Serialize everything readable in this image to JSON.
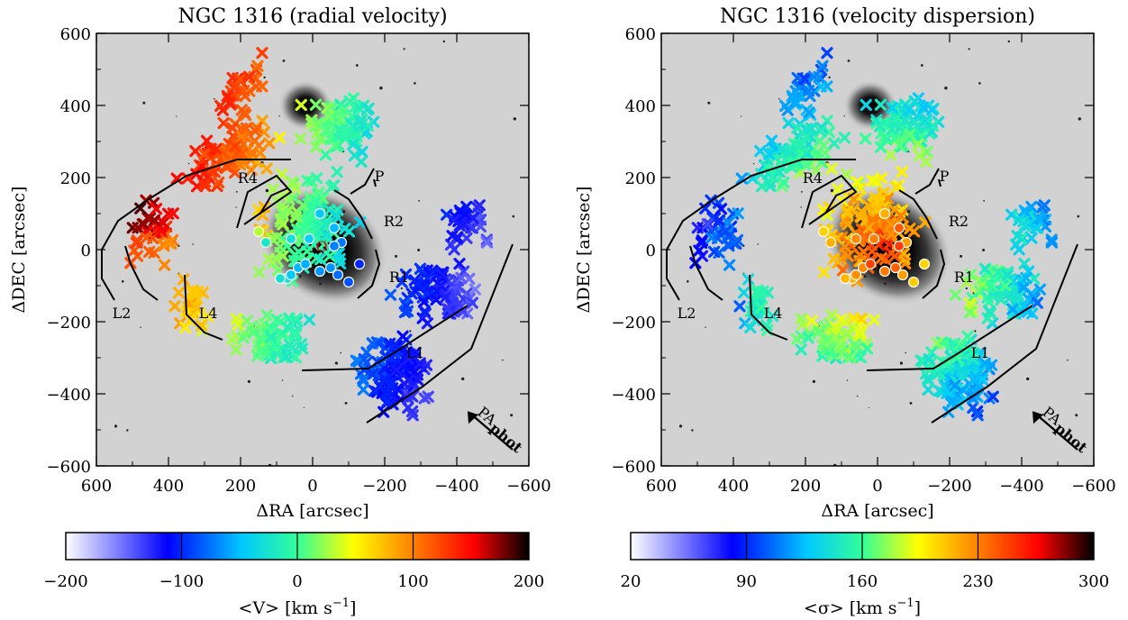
{
  "panels": [
    {
      "title": "NGC 1316 (radial velocity)",
      "xlabel": "ΔRA [arcsec]",
      "ylabel": "ΔDEC [arcsec]",
      "xlim": [
        600,
        -600
      ],
      "ylim": [
        -600,
        600
      ],
      "xticks": [
        "600",
        "400",
        "200",
        "0",
        "−200",
        "−400",
        "−600"
      ],
      "yticks": [
        "600",
        "400",
        "200",
        "0",
        "−200",
        "−400",
        "−600"
      ],
      "labels": [
        "R4",
        "P",
        "R2",
        "R1",
        "L2",
        "L4",
        "L1"
      ],
      "center_label": "O",
      "pa_label": "PA",
      "pa_sub": "phot",
      "colorbar": {
        "min": -200,
        "max": 200,
        "ticks": [
          "−200",
          "−100",
          "0",
          "100",
          "200"
        ],
        "label_main": "<V> [km s",
        "label_sup": "−1",
        "label_close": "]",
        "scale": "white-blue-cyan-green-yellow-orange-red-black"
      }
    },
    {
      "title": "NGC 1316 (velocity dispersion)",
      "xlabel": "ΔRA [arcsec]",
      "ylabel": "ΔDEC [arcsec]",
      "xlim": [
        600,
        -600
      ],
      "ylim": [
        -600,
        600
      ],
      "xticks": [
        "600",
        "400",
        "200",
        "0",
        "−200",
        "−400",
        "−600"
      ],
      "yticks": [
        "600",
        "400",
        "200",
        "0",
        "−200",
        "−400",
        "−600"
      ],
      "labels": [
        "R4",
        "P",
        "R2",
        "R1",
        "L2",
        "L4",
        "L1"
      ],
      "center_label": "O",
      "pa_label": "PA",
      "pa_sub": "phot",
      "colorbar": {
        "min": 20,
        "max": 300,
        "ticks": [
          "20",
          "90",
          "160",
          "230",
          "300"
        ],
        "label_main": "<σ> [km s",
        "label_sup": "−1",
        "label_close": "]",
        "scale": "white-blue-cyan-green-yellow-orange-red-black"
      }
    }
  ],
  "chart_data": [
    {
      "type": "scatter",
      "title": "NGC 1316 (radial velocity)",
      "xlabel": "ΔRA [arcsec]",
      "ylabel": "ΔDEC [arcsec]",
      "xlim": [
        600,
        -600
      ],
      "ylim": [
        -600,
        600
      ],
      "color_quantity": "<V> [km s−1]",
      "color_range": [
        -200,
        200
      ],
      "grid": false,
      "approximate_field_values": [
        {
          "region": "north-east (RA 150–300, DEC 100–600)",
          "value": 130
        },
        {
          "region": "centre",
          "value": -20
        },
        {
          "region": "south-west (RA -200 to -450, DEC -250 to -500)",
          "value": -100
        }
      ]
    },
    {
      "type": "scatter",
      "title": "NGC 1316 (velocity dispersion)",
      "xlabel": "ΔRA [arcsec]",
      "ylabel": "ΔDEC [arcsec]",
      "xlim": [
        600,
        -600
      ],
      "ylim": [
        -600,
        600
      ],
      "color_quantity": "<σ> [km s−1]",
      "color_range": [
        20,
        300
      ],
      "grid": false,
      "approximate_field_values": [
        {
          "region": "centre",
          "value": 220
        },
        {
          "region": "outer halo",
          "value": 130
        },
        {
          "region": "east edge",
          "value": 100
        }
      ]
    }
  ]
}
